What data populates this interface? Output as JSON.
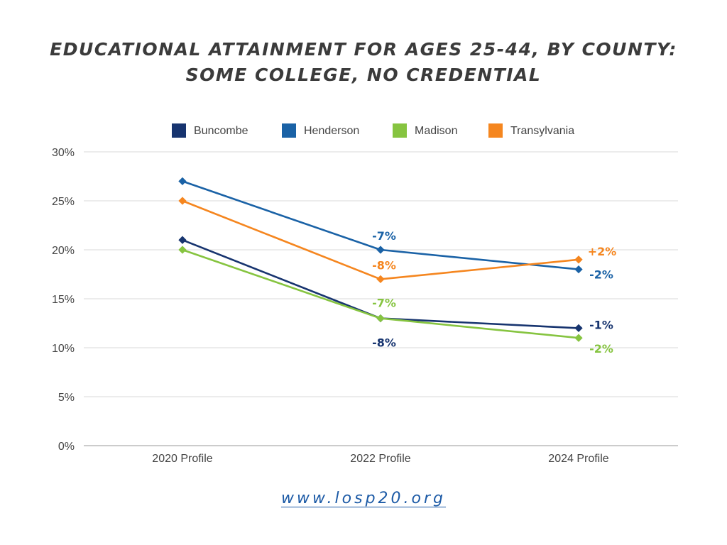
{
  "title_lines": [
    "EDUCATIONAL ATTAINMENT FOR AGES 25-44, BY COUNTY:",
    "SOME COLLEGE, NO CREDENTIAL"
  ],
  "footer": {
    "url": "www.losp20.org"
  },
  "chart_data": {
    "type": "line",
    "categories": [
      "2020 Profile",
      "2022 Profile",
      "2024 Profile"
    ],
    "y_ticks": [
      "0%",
      "5%",
      "10%",
      "15%",
      "20%",
      "25%",
      "30%"
    ],
    "ylim": [
      0,
      30
    ],
    "y_unit": "%",
    "grid": true,
    "legend_position": "top",
    "series": [
      {
        "name": "Buncombe",
        "color": "#17346f",
        "values": [
          21,
          13,
          12
        ],
        "point_labels": [
          "",
          "-8%",
          "-1%"
        ]
      },
      {
        "name": "Henderson",
        "color": "#1a62a6",
        "values": [
          27,
          20,
          18
        ],
        "point_labels": [
          "",
          "-7%",
          "-2%"
        ]
      },
      {
        "name": "Madison",
        "color": "#86c440",
        "values": [
          20,
          13,
          11
        ],
        "point_labels": [
          "",
          "-7%",
          "-2%"
        ]
      },
      {
        "name": "Transylvania",
        "color": "#f5861f",
        "values": [
          25,
          17,
          19
        ],
        "point_labels": [
          "",
          "-8%",
          "+2%"
        ]
      }
    ]
  }
}
